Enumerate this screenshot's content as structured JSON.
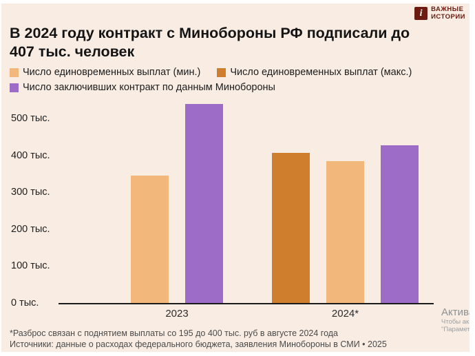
{
  "theme": {
    "background": "#f8ece3",
    "text": "#141414",
    "axis": "#1b1b1b",
    "brand_color": "#6b1b10"
  },
  "brand": {
    "icon_letter": "i",
    "name_line1": "ВАЖНЫЕ",
    "name_line2": "ИСТОРИИ"
  },
  "title": "В 2024 году контракт с Минобороны РФ подписали до 407 тыс. человек",
  "legend": {
    "items": [
      {
        "label": "Число единовременных выплат (мин.)",
        "color": "#f1b77b"
      },
      {
        "label": "Число единовременных выплат (макс.)",
        "color": "#cf7e2e"
      },
      {
        "label": "Число заключивших контракт по данным Минобороны",
        "color": "#9c6cc6"
      }
    ]
  },
  "chart_data": {
    "type": "bar",
    "title": "В 2024 году контракт с Минобороны РФ подписали до 407 тыс. человек",
    "categories": [
      "2023",
      "2024*"
    ],
    "series": [
      {
        "name": "Число единовременных выплат (мин.)",
        "color": "#f1b77b",
        "values": [
          345,
          385
        ]
      },
      {
        "name": "Число единовременных выплат (макс.)",
        "color": "#cf7e2e",
        "values": [
          null,
          407
        ]
      },
      {
        "name": "Число заключивших контракт по данным Минобороны",
        "color": "#9c6cc6",
        "values": [
          540,
          427
        ]
      }
    ],
    "bar_order": [
      [
        0,
        2
      ],
      [
        1,
        0,
        2
      ]
    ],
    "unit": "тыс.",
    "ylim": [
      0,
      560
    ],
    "yticks": [
      0,
      100,
      200,
      300,
      400,
      500
    ],
    "ytick_labels": [
      "0 тыс.",
      "100 тыс.",
      "200 тыс.",
      "300 тыс.",
      "400 тыс.",
      "500 тыс."
    ],
    "grid": false,
    "legend_position": "top"
  },
  "footnotes": {
    "line1": "*Разброс связан с поднятием выплаты со 195 до 400 тыс. руб в августе 2024 года",
    "line2": "Источники: данные о расходах федерального бюджета, заявления Минобороны в СМИ • 2025"
  },
  "watermark": {
    "line1": "Актива",
    "line2": "Чтобы ак",
    "line3": "\"Парамет"
  }
}
